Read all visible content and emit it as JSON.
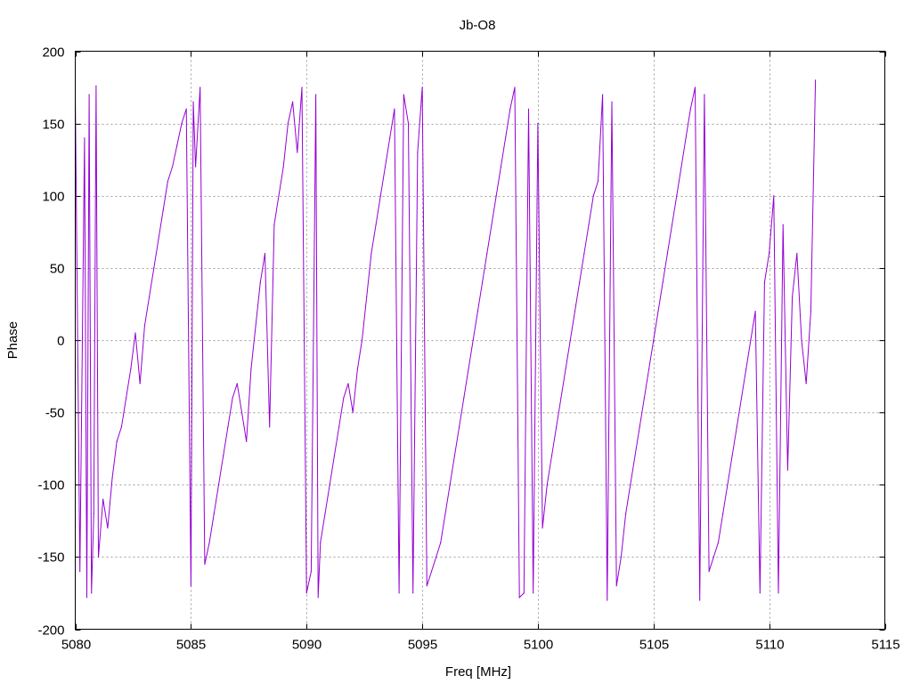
{
  "chart_data": {
    "type": "line",
    "title": "Jb-O8",
    "xlabel": "Freq [MHz]",
    "ylabel": "Phase",
    "xlim": [
      5080,
      5115
    ],
    "ylim": [
      -200,
      200
    ],
    "xticks": [
      5080,
      5085,
      5090,
      5095,
      5100,
      5105,
      5110,
      5115
    ],
    "yticks": [
      -200,
      -150,
      -100,
      -50,
      0,
      50,
      100,
      150,
      200
    ],
    "grid": true,
    "legend": "none",
    "series": [
      {
        "color": "#9400d3",
        "x": [
          5080.0,
          5080.2,
          5080.4,
          5080.5,
          5080.6,
          5080.7,
          5080.8,
          5080.9,
          5081.0,
          5081.2,
          5081.4,
          5081.6,
          5081.8,
          5082.0,
          5082.2,
          5082.4,
          5082.6,
          5082.8,
          5083.0,
          5083.2,
          5083.4,
          5083.6,
          5083.8,
          5084.0,
          5084.2,
          5084.4,
          5084.6,
          5084.8,
          5085.0,
          5085.1,
          5085.2,
          5085.4,
          5085.6,
          5085.8,
          5086.0,
          5086.2,
          5086.4,
          5086.6,
          5086.8,
          5087.0,
          5087.2,
          5087.4,
          5087.6,
          5087.8,
          5088.0,
          5088.2,
          5088.4,
          5088.6,
          5088.8,
          5089.0,
          5089.2,
          5089.4,
          5089.6,
          5089.8,
          5090.0,
          5090.2,
          5090.4,
          5090.5,
          5090.6,
          5090.8,
          5091.0,
          5091.2,
          5091.4,
          5091.6,
          5091.8,
          5092.0,
          5092.2,
          5092.4,
          5092.6,
          5092.8,
          5093.0,
          5093.2,
          5093.4,
          5093.6,
          5093.8,
          5094.0,
          5094.2,
          5094.4,
          5094.6,
          5094.8,
          5095.0,
          5095.2,
          5095.4,
          5095.6,
          5095.8,
          5096.0,
          5096.2,
          5096.4,
          5096.6,
          5096.8,
          5097.0,
          5097.2,
          5097.4,
          5097.6,
          5097.8,
          5098.0,
          5098.2,
          5098.4,
          5098.6,
          5098.8,
          5099.0,
          5099.2,
          5099.4,
          5099.6,
          5099.8,
          5100.0,
          5100.2,
          5100.4,
          5100.6,
          5100.8,
          5101.0,
          5101.2,
          5101.4,
          5101.6,
          5101.8,
          5102.0,
          5102.2,
          5102.4,
          5102.6,
          5102.8,
          5103.0,
          5103.2,
          5103.4,
          5103.6,
          5103.8,
          5104.0,
          5104.2,
          5104.4,
          5104.6,
          5104.8,
          5105.0,
          5105.2,
          5105.4,
          5105.6,
          5105.8,
          5106.0,
          5106.2,
          5106.4,
          5106.6,
          5106.8,
          5107.0,
          5107.2,
          5107.4,
          5107.6,
          5107.8,
          5108.0,
          5108.2,
          5108.4,
          5108.6,
          5108.8,
          5109.0,
          5109.2,
          5109.4,
          5109.6,
          5109.8,
          5110.0,
          5110.2,
          5110.4,
          5110.6,
          5110.8,
          5111.0,
          5111.2,
          5111.4,
          5111.6,
          5111.8,
          5112.0
        ],
        "y": [
          172,
          -160,
          140,
          -178,
          170,
          -175,
          -120,
          176,
          -150,
          -110,
          -130,
          -95,
          -70,
          -60,
          -40,
          -20,
          5,
          -30,
          10,
          30,
          50,
          70,
          90,
          110,
          120,
          135,
          150,
          160,
          -170,
          165,
          120,
          175,
          -155,
          -140,
          -120,
          -100,
          -80,
          -60,
          -40,
          -30,
          -50,
          -70,
          -20,
          10,
          40,
          60,
          -60,
          80,
          100,
          120,
          150,
          165,
          130,
          175,
          -175,
          -160,
          170,
          -178,
          -140,
          -120,
          -100,
          -80,
          -60,
          -40,
          -30,
          -50,
          -20,
          0,
          30,
          60,
          80,
          100,
          120,
          140,
          160,
          -175,
          170,
          150,
          -175,
          130,
          175,
          -170,
          -160,
          -150,
          -140,
          -120,
          -100,
          -80,
          -60,
          -40,
          -20,
          0,
          20,
          40,
          60,
          80,
          100,
          120,
          140,
          160,
          175,
          -178,
          -175,
          160,
          -175,
          150,
          -130,
          -100,
          -80,
          -60,
          -40,
          -20,
          0,
          20,
          40,
          60,
          80,
          100,
          110,
          170,
          -180,
          165,
          -170,
          -150,
          -120,
          -100,
          -80,
          -60,
          -40,
          -20,
          0,
          20,
          40,
          60,
          80,
          100,
          120,
          140,
          160,
          175,
          -180,
          170,
          -160,
          -150,
          -140,
          -120,
          -100,
          -80,
          -60,
          -40,
          -20,
          0,
          20,
          -175,
          40,
          60,
          100,
          -175,
          80,
          -90,
          30,
          60,
          0,
          -30,
          20,
          180
        ]
      }
    ]
  }
}
